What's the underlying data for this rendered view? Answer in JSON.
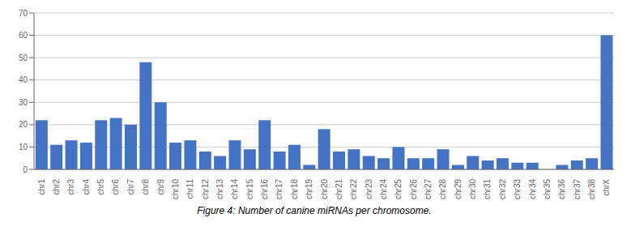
{
  "chart_data": {
    "type": "bar",
    "title": "Figure 4: Number of canine miRNAs per chromosome.",
    "categories": [
      "chr1",
      "chr2",
      "chr3",
      "chr4",
      "chr5",
      "chr6",
      "chr7",
      "chr8",
      "chr9",
      "chr10",
      "chr11",
      "chr12",
      "chr13",
      "chr14",
      "chr15",
      "chr16",
      "chr17",
      "chr18",
      "chr19",
      "chr20",
      "chr21",
      "chr22",
      "chr23",
      "chr24",
      "chr25",
      "chr26",
      "chr27",
      "chr28",
      "chr29",
      "chr30",
      "chr31",
      "chr32",
      "chr33",
      "chr34",
      "chr35",
      "chr36",
      "chr37",
      "chr38",
      "chrX"
    ],
    "values": [
      22,
      11,
      13,
      12,
      22,
      23,
      20,
      48,
      30,
      12,
      13,
      8,
      6,
      13,
      9,
      22,
      8,
      11,
      2,
      18,
      8,
      9,
      6,
      5,
      10,
      5,
      5,
      9,
      2,
      6,
      4,
      5,
      3,
      3,
      0,
      2,
      4,
      5,
      60
    ],
    "color": "#4472C4",
    "ylim": [
      0,
      70
    ],
    "yticks": [
      0,
      10,
      20,
      30,
      40,
      50,
      60,
      70
    ],
    "grid": true
  }
}
